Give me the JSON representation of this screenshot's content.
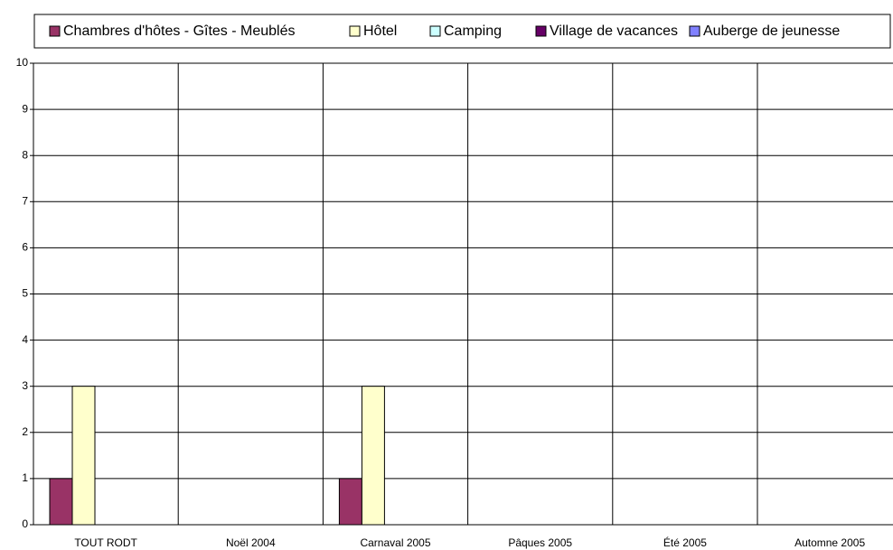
{
  "chart_data": {
    "type": "bar",
    "categories": [
      "TOUT RODT",
      "Noël 2004",
      "Carnaval 2005",
      "Pâques 2005",
      "Été 2005",
      "Automne 2005"
    ],
    "series": [
      {
        "name": "Chambres d'hôtes - Gîtes - Meublés",
        "color": "#993366",
        "values": [
          1,
          0,
          1,
          0,
          0,
          0
        ]
      },
      {
        "name": "Hôtel",
        "color": "#ffffcc",
        "values": [
          3,
          0,
          3,
          0,
          0,
          0
        ]
      },
      {
        "name": "Camping",
        "color": "#ccffff",
        "values": [
          0,
          0,
          0,
          0,
          0,
          0
        ]
      },
      {
        "name": "Village de vacances",
        "color": "#660066",
        "values": [
          0,
          0,
          0,
          0,
          0,
          0
        ]
      },
      {
        "name": "Auberge de jeunesse",
        "color": "#8080ff",
        "values": [
          0,
          0,
          0,
          0,
          0,
          0
        ]
      }
    ],
    "ylim": [
      0,
      10
    ],
    "yticks": [
      0,
      1,
      2,
      3,
      4,
      5,
      6,
      7,
      8,
      9,
      10
    ],
    "grid": true,
    "legend": "top"
  }
}
